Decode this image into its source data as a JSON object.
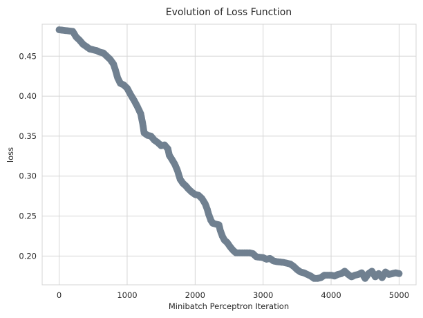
{
  "chart_data": {
    "type": "scatter",
    "title": "Evolution of Loss Function",
    "xlabel": "Minibatch Perceptron Iteration",
    "ylabel": "loss",
    "xlim": [
      -250,
      5250
    ],
    "ylim": [
      0.164,
      0.49
    ],
    "xticks": [
      0,
      1000,
      2000,
      3000,
      4000,
      5000
    ],
    "yticks": [
      0.2,
      0.25,
      0.3,
      0.35,
      0.4,
      0.45
    ],
    "grid": true,
    "marker_color": "#708090",
    "series": [
      {
        "points": [
          [
            0,
            0.483
          ],
          [
            200,
            0.481
          ],
          [
            250,
            0.474
          ],
          [
            300,
            0.47
          ],
          [
            350,
            0.465
          ],
          [
            400,
            0.462
          ],
          [
            450,
            0.459
          ],
          [
            550,
            0.457
          ],
          [
            600,
            0.455
          ],
          [
            650,
            0.454
          ],
          [
            700,
            0.45
          ],
          [
            750,
            0.446
          ],
          [
            800,
            0.44
          ],
          [
            830,
            0.432
          ],
          [
            860,
            0.423
          ],
          [
            900,
            0.416
          ],
          [
            950,
            0.414
          ],
          [
            1000,
            0.41
          ],
          [
            1050,
            0.402
          ],
          [
            1100,
            0.395
          ],
          [
            1150,
            0.387
          ],
          [
            1200,
            0.378
          ],
          [
            1230,
            0.365
          ],
          [
            1250,
            0.354
          ],
          [
            1300,
            0.351
          ],
          [
            1350,
            0.35
          ],
          [
            1400,
            0.345
          ],
          [
            1450,
            0.342
          ],
          [
            1500,
            0.338
          ],
          [
            1550,
            0.339
          ],
          [
            1600,
            0.334
          ],
          [
            1620,
            0.326
          ],
          [
            1650,
            0.322
          ],
          [
            1700,
            0.315
          ],
          [
            1740,
            0.307
          ],
          [
            1780,
            0.296
          ],
          [
            1820,
            0.291
          ],
          [
            1860,
            0.288
          ],
          [
            1900,
            0.284
          ],
          [
            1950,
            0.28
          ],
          [
            2000,
            0.277
          ],
          [
            2050,
            0.276
          ],
          [
            2100,
            0.272
          ],
          [
            2150,
            0.265
          ],
          [
            2180,
            0.258
          ],
          [
            2200,
            0.252
          ],
          [
            2230,
            0.245
          ],
          [
            2260,
            0.241
          ],
          [
            2300,
            0.24
          ],
          [
            2350,
            0.239
          ],
          [
            2370,
            0.232
          ],
          [
            2400,
            0.225
          ],
          [
            2430,
            0.22
          ],
          [
            2470,
            0.217
          ],
          [
            2520,
            0.211
          ],
          [
            2560,
            0.207
          ],
          [
            2600,
            0.204
          ],
          [
            2700,
            0.204
          ],
          [
            2800,
            0.204
          ],
          [
            2850,
            0.203
          ],
          [
            2900,
            0.199
          ],
          [
            3000,
            0.198
          ],
          [
            3050,
            0.196
          ],
          [
            3100,
            0.197
          ],
          [
            3150,
            0.194
          ],
          [
            3200,
            0.193
          ],
          [
            3300,
            0.192
          ],
          [
            3400,
            0.19
          ],
          [
            3450,
            0.187
          ],
          [
            3500,
            0.183
          ],
          [
            3550,
            0.18
          ],
          [
            3600,
            0.179
          ],
          [
            3650,
            0.177
          ],
          [
            3700,
            0.175
          ],
          [
            3750,
            0.172
          ],
          [
            3800,
            0.172
          ],
          [
            3850,
            0.173
          ],
          [
            3900,
            0.176
          ],
          [
            4000,
            0.176
          ],
          [
            4050,
            0.175
          ],
          [
            4100,
            0.177
          ],
          [
            4150,
            0.178
          ],
          [
            4200,
            0.181
          ],
          [
            4250,
            0.177
          ],
          [
            4300,
            0.174
          ],
          [
            4350,
            0.176
          ],
          [
            4400,
            0.177
          ],
          [
            4450,
            0.179
          ],
          [
            4500,
            0.172
          ],
          [
            4550,
            0.178
          ],
          [
            4600,
            0.181
          ],
          [
            4650,
            0.174
          ],
          [
            4700,
            0.178
          ],
          [
            4750,
            0.173
          ],
          [
            4800,
            0.18
          ],
          [
            4850,
            0.177
          ],
          [
            4900,
            0.178
          ],
          [
            4950,
            0.179
          ],
          [
            5000,
            0.178
          ]
        ]
      }
    ]
  }
}
